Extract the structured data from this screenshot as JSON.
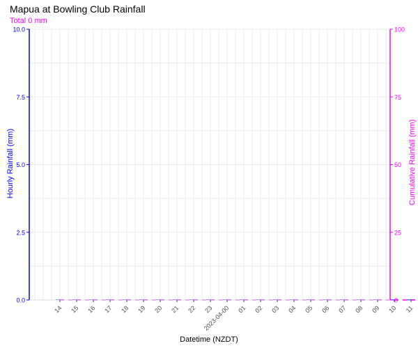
{
  "chart_data": {
    "type": "bar",
    "title": "Mapua at Bowling Club Rainfall",
    "subtitle": "Total 0 mm",
    "xlabel": "Datetime (NZDT)",
    "ylabel": "Hourly Rainfall (mm)",
    "y2label": "Cumulative Rainfall (mm)",
    "ylim": [
      0,
      10
    ],
    "y2lim": [
      0,
      100
    ],
    "yticks": [
      "0.0",
      "2.5",
      "5.0",
      "7.5",
      "10.0"
    ],
    "y2ticks": [
      "0",
      "25",
      "50",
      "75",
      "100"
    ],
    "grid": true,
    "categories": [
      "14",
      "15",
      "16",
      "17",
      "18",
      "19",
      "20",
      "21",
      "22",
      "23",
      "2023-04-00",
      "01",
      "02",
      "03",
      "04",
      "05",
      "06",
      "07",
      "08",
      "09",
      "10",
      "11",
      "12",
      "13",
      "14"
    ],
    "series": [
      {
        "type": "bar",
        "axis": "left",
        "values": [
          0,
          0,
          0,
          0,
          0,
          0,
          0,
          0,
          0,
          0,
          0,
          0,
          0,
          0,
          0,
          0,
          0,
          0,
          0,
          0,
          0,
          0,
          0,
          0,
          0
        ]
      },
      {
        "type": "line",
        "axis": "right",
        "values": [
          0,
          0,
          0,
          0,
          0,
          0,
          0,
          0,
          0,
          0,
          0,
          0,
          0,
          0,
          0,
          0,
          0,
          0,
          0,
          0,
          0,
          0,
          0,
          0,
          0
        ]
      }
    ],
    "colors": {
      "left_axis": "#0000ff",
      "right_axis": "#ff00ff",
      "grid": "#ebebeb"
    }
  }
}
